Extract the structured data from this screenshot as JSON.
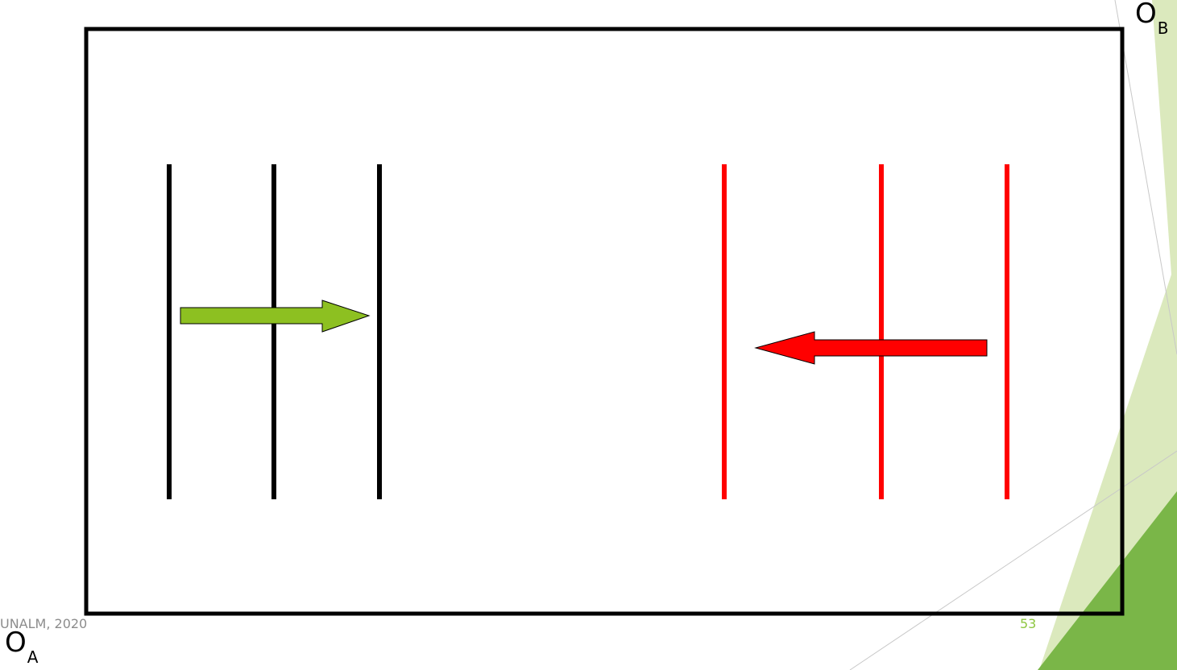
{
  "labels": {
    "ob_main": "O",
    "ob_sub": "B",
    "oa_main": "O",
    "oa_sub": "A"
  },
  "footer": {
    "left_text": "UNALM, 2020",
    "page_number": "53"
  },
  "colors": {
    "frame": "#000000",
    "group_a_lines": "#000000",
    "group_b_lines": "#ff0000",
    "arrow_right_fill": "#8dc021",
    "arrow_left_fill": "#ff0000",
    "accent_light": "#dbe9bd",
    "accent_dark": "#7ab648"
  },
  "diagram": {
    "group_a": {
      "line_count": 3,
      "arrow_direction": "right"
    },
    "group_b": {
      "line_count": 3,
      "arrow_direction": "left"
    }
  }
}
